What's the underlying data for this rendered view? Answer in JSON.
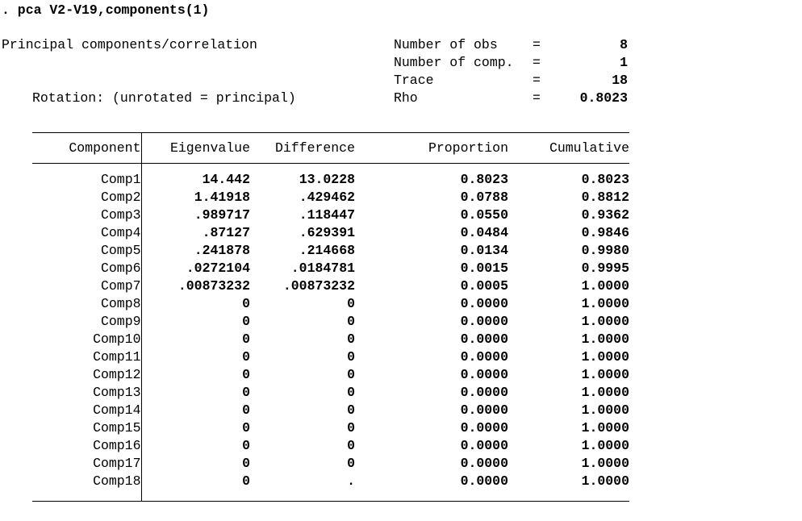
{
  "command": ". pca V2-V19,components(1)",
  "header": {
    "title": "Principal components/correlation",
    "rotation": "Rotation: (unrotated = principal)",
    "eq": "=",
    "stats": [
      {
        "label": "Number of obs",
        "value": "8"
      },
      {
        "label": "Number of comp.",
        "value": "1"
      },
      {
        "label": "Trace",
        "value": "18"
      },
      {
        "label": "Rho",
        "value": "0.8023"
      }
    ]
  },
  "table": {
    "columns": [
      "Component",
      "Eigenvalue",
      "Difference",
      "Proportion",
      "Cumulative"
    ],
    "rows": [
      {
        "component": "Comp1",
        "eigenvalue": "14.442",
        "difference": "13.0228",
        "proportion": "0.8023",
        "cumulative": "0.8023"
      },
      {
        "component": "Comp2",
        "eigenvalue": "1.41918",
        "difference": ".429462",
        "proportion": "0.0788",
        "cumulative": "0.8812"
      },
      {
        "component": "Comp3",
        "eigenvalue": ".989717",
        "difference": ".118447",
        "proportion": "0.0550",
        "cumulative": "0.9362"
      },
      {
        "component": "Comp4",
        "eigenvalue": ".87127",
        "difference": ".629391",
        "proportion": "0.0484",
        "cumulative": "0.9846"
      },
      {
        "component": "Comp5",
        "eigenvalue": ".241878",
        "difference": ".214668",
        "proportion": "0.0134",
        "cumulative": "0.9980"
      },
      {
        "component": "Comp6",
        "eigenvalue": ".0272104",
        "difference": ".0184781",
        "proportion": "0.0015",
        "cumulative": "0.9995"
      },
      {
        "component": "Comp7",
        "eigenvalue": ".00873232",
        "difference": ".00873232",
        "proportion": "0.0005",
        "cumulative": "1.0000"
      },
      {
        "component": "Comp8",
        "eigenvalue": "0",
        "difference": "0",
        "proportion": "0.0000",
        "cumulative": "1.0000"
      },
      {
        "component": "Comp9",
        "eigenvalue": "0",
        "difference": "0",
        "proportion": "0.0000",
        "cumulative": "1.0000"
      },
      {
        "component": "Comp10",
        "eigenvalue": "0",
        "difference": "0",
        "proportion": "0.0000",
        "cumulative": "1.0000"
      },
      {
        "component": "Comp11",
        "eigenvalue": "0",
        "difference": "0",
        "proportion": "0.0000",
        "cumulative": "1.0000"
      },
      {
        "component": "Comp12",
        "eigenvalue": "0",
        "difference": "0",
        "proportion": "0.0000",
        "cumulative": "1.0000"
      },
      {
        "component": "Comp13",
        "eigenvalue": "0",
        "difference": "0",
        "proportion": "0.0000",
        "cumulative": "1.0000"
      },
      {
        "component": "Comp14",
        "eigenvalue": "0",
        "difference": "0",
        "proportion": "0.0000",
        "cumulative": "1.0000"
      },
      {
        "component": "Comp15",
        "eigenvalue": "0",
        "difference": "0",
        "proportion": "0.0000",
        "cumulative": "1.0000"
      },
      {
        "component": "Comp16",
        "eigenvalue": "0",
        "difference": "0",
        "proportion": "0.0000",
        "cumulative": "1.0000"
      },
      {
        "component": "Comp17",
        "eigenvalue": "0",
        "difference": "0",
        "proportion": "0.0000",
        "cumulative": "1.0000"
      },
      {
        "component": "Comp18",
        "eigenvalue": "0",
        "difference": ".",
        "proportion": "0.0000",
        "cumulative": "1.0000"
      }
    ]
  }
}
